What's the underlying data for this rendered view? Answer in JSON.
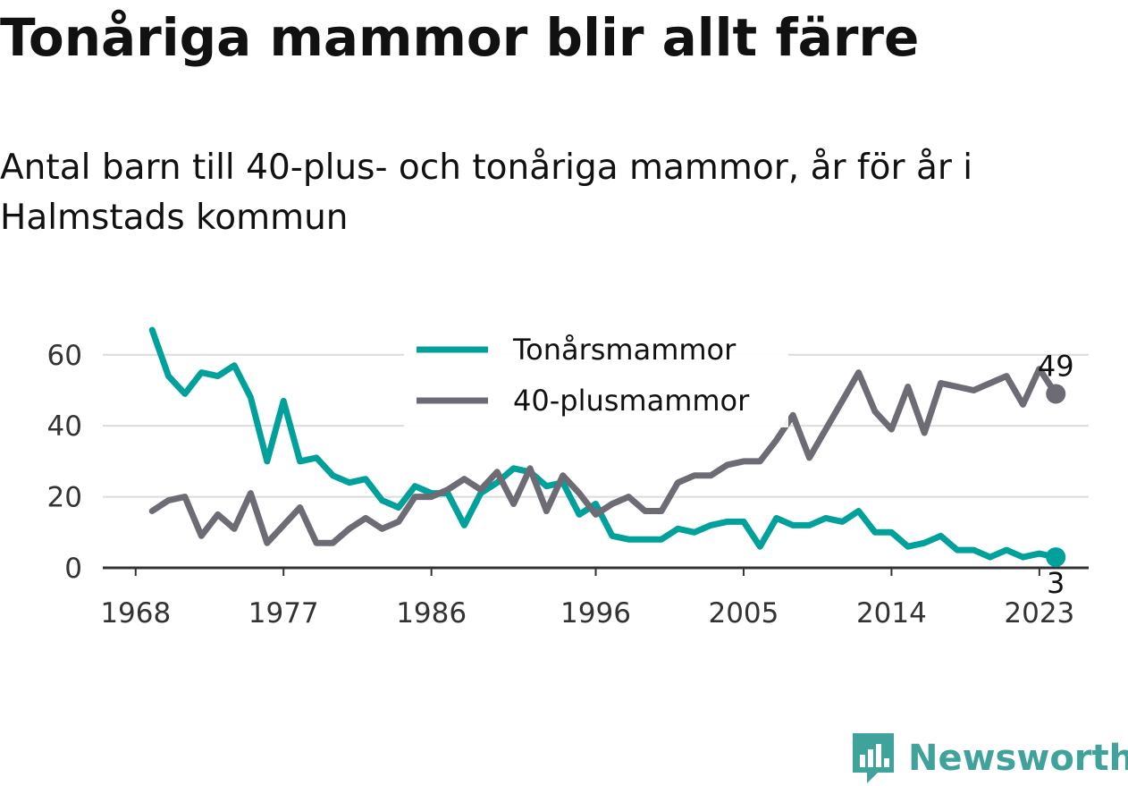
{
  "title": "Tonåriga mammor blir allt färre",
  "subtitle": "Antal barn till 40-plus- och tonåriga mammor, år för år i Halmstads kommun",
  "brand": {
    "name": "Newsworthy",
    "icon": "bar-chart-speech-bubble-icon",
    "color": "#3fa39b"
  },
  "chart_data": {
    "type": "line",
    "title": "Tonåriga mammor blir allt färre",
    "subtitle": "Antal barn till 40-plus- och tonåriga mammor, år för år i Halmstads kommun",
    "xlabel": "",
    "ylabel": "",
    "xlim": [
      1966,
      2026
    ],
    "ylim": [
      0,
      68
    ],
    "x_ticks": [
      1968,
      1977,
      1986,
      1996,
      2005,
      2014,
      2023
    ],
    "y_ticks": [
      0,
      20,
      40,
      60
    ],
    "grid": true,
    "legend_position": "top-center",
    "x": [
      1969,
      1970,
      1971,
      1972,
      1973,
      1974,
      1975,
      1976,
      1977,
      1978,
      1979,
      1980,
      1981,
      1982,
      1983,
      1984,
      1985,
      1986,
      1987,
      1988,
      1989,
      1990,
      1991,
      1992,
      1993,
      1994,
      1995,
      1996,
      1997,
      1998,
      1999,
      2000,
      2001,
      2002,
      2003,
      2004,
      2005,
      2006,
      2007,
      2008,
      2009,
      2010,
      2011,
      2012,
      2013,
      2014,
      2015,
      2016,
      2017,
      2018,
      2019,
      2020,
      2021,
      2022,
      2023,
      2024
    ],
    "series": [
      {
        "name": "Tonårsmammor",
        "color": "#00a19a",
        "end_label": "3",
        "values": [
          67,
          54,
          49,
          55,
          54,
          57,
          48,
          30,
          47,
          30,
          31,
          26,
          24,
          25,
          19,
          17,
          23,
          21,
          21,
          12,
          21,
          24,
          28,
          27,
          23,
          24,
          15,
          18,
          9,
          8,
          8,
          8,
          11,
          10,
          12,
          13,
          13,
          6,
          14,
          12,
          12,
          14,
          13,
          16,
          10,
          10,
          6,
          7,
          9,
          5,
          5,
          3,
          5,
          3,
          4,
          3
        ]
      },
      {
        "name": "40-plusmammor",
        "color": "#6d6b74",
        "end_label": "49",
        "values": [
          16,
          19,
          20,
          9,
          15,
          11,
          21,
          7,
          12,
          17,
          7,
          7,
          11,
          14,
          11,
          13,
          20,
          20,
          22,
          25,
          22,
          27,
          18,
          28,
          16,
          26,
          21,
          15,
          18,
          20,
          16,
          16,
          24,
          26,
          26,
          29,
          30,
          30,
          36,
          43,
          31,
          39,
          47,
          55,
          44,
          39,
          51,
          38,
          52,
          51,
          50,
          52,
          54,
          46,
          56,
          49
        ]
      }
    ]
  }
}
